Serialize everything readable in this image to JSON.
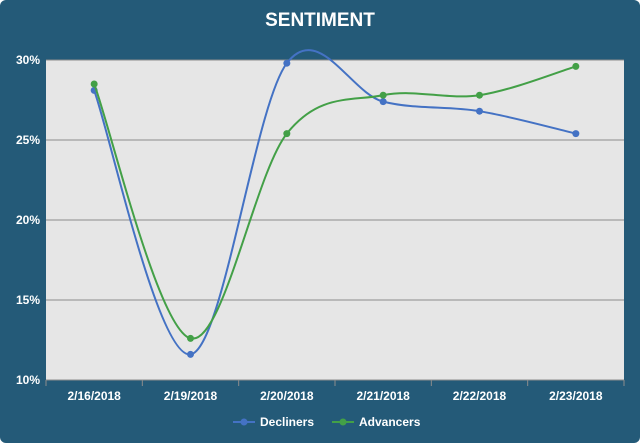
{
  "chart_data": {
    "type": "line",
    "title": "SENTIMENT",
    "categories": [
      "2/16/2018",
      "2/19/2018",
      "2/20/2018",
      "2/21/2018",
      "2/22/2018",
      "2/23/2018"
    ],
    "series": [
      {
        "name": "Decliners",
        "values": [
          28.1,
          11.6,
          29.8,
          27.4,
          26.8,
          25.4
        ],
        "color": "#4472c4"
      },
      {
        "name": "Advancers",
        "values": [
          28.5,
          12.6,
          25.4,
          27.8,
          27.8,
          29.6
        ],
        "color": "#43a047"
      }
    ],
    "ylim": [
      10,
      30
    ],
    "y_ticks": [
      "10%",
      "15%",
      "20%",
      "25%",
      "30%"
    ],
    "y_tick_values": [
      10,
      15,
      20,
      25,
      30
    ],
    "xlabel": "",
    "ylabel": "",
    "grid": true,
    "legend": "bottom",
    "plot_background": "#e6e6e6",
    "frame_color": "#245a78"
  }
}
